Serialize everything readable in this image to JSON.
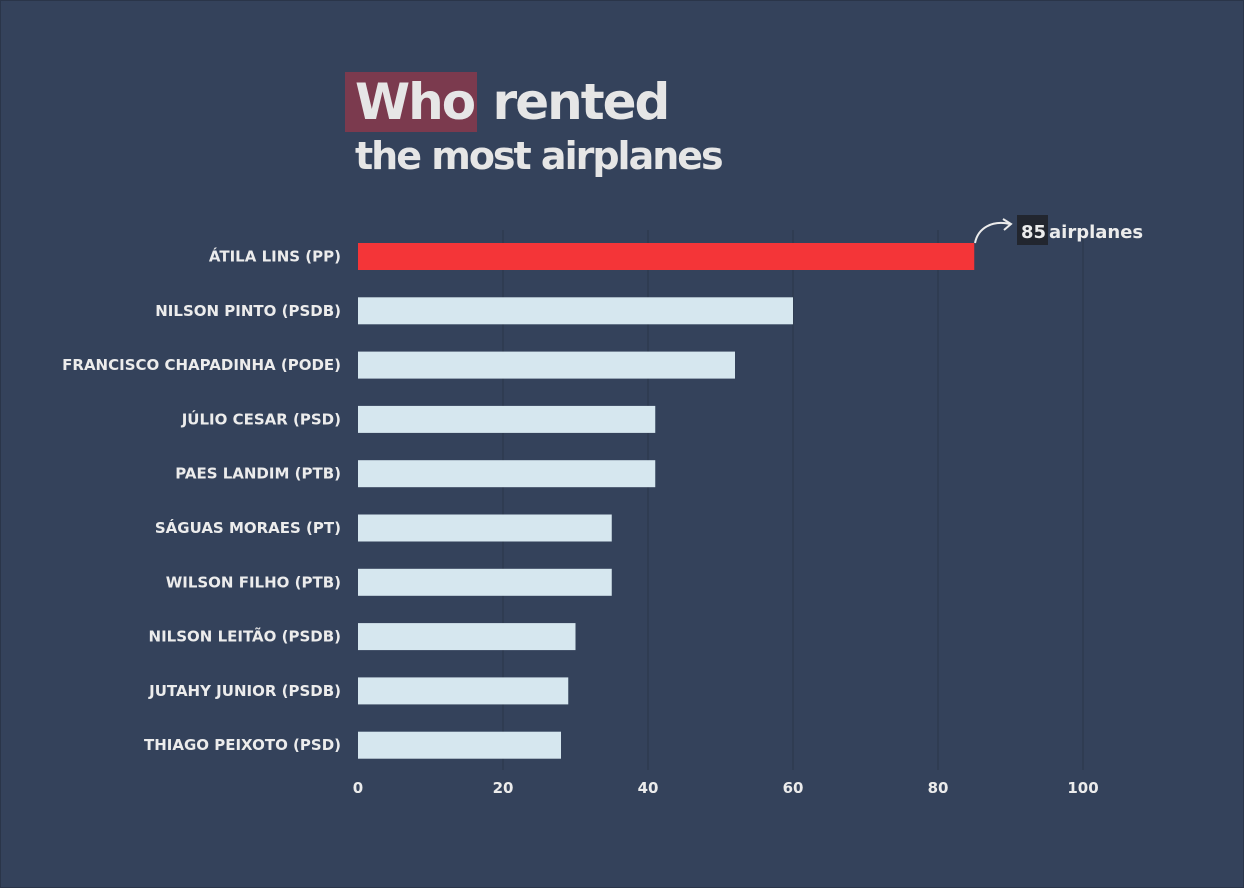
{
  "title": {
    "highlight": "Who",
    "rest_line1": "rented",
    "line2": "the most airplanes"
  },
  "colors": {
    "background": "#34425b",
    "highlight_bar": "#f43538",
    "bar": "#d6e7ef",
    "title_highlight_bg": "#7b3a4e",
    "gridline": "#2a3549",
    "annotation_box": "#22262f"
  },
  "chart_data": {
    "type": "bar",
    "orientation": "horizontal",
    "categories": [
      "ÁTILA LINS (PP)",
      "NILSON PINTO (PSDB)",
      "FRANCISCO CHAPADINHA (PODE)",
      "JÚLIO CESAR (PSD)",
      "PAES LANDIM (PTB)",
      "SÁGUAS MORAES (PT)",
      "WILSON FILHO (PTB)",
      "NILSON LEITÃO (PSDB)",
      "JUTAHY JUNIOR (PSDB)",
      "THIAGO PEIXOTO (PSD)"
    ],
    "values": [
      85,
      60,
      52,
      41,
      41,
      35,
      35,
      30,
      29,
      28
    ],
    "highlight_index": 0,
    "xlim": [
      0,
      100
    ],
    "xticks": [
      0,
      20,
      40,
      60,
      80,
      100
    ],
    "grid": true,
    "annotation": {
      "number": "85",
      "text": "airplanes"
    }
  }
}
